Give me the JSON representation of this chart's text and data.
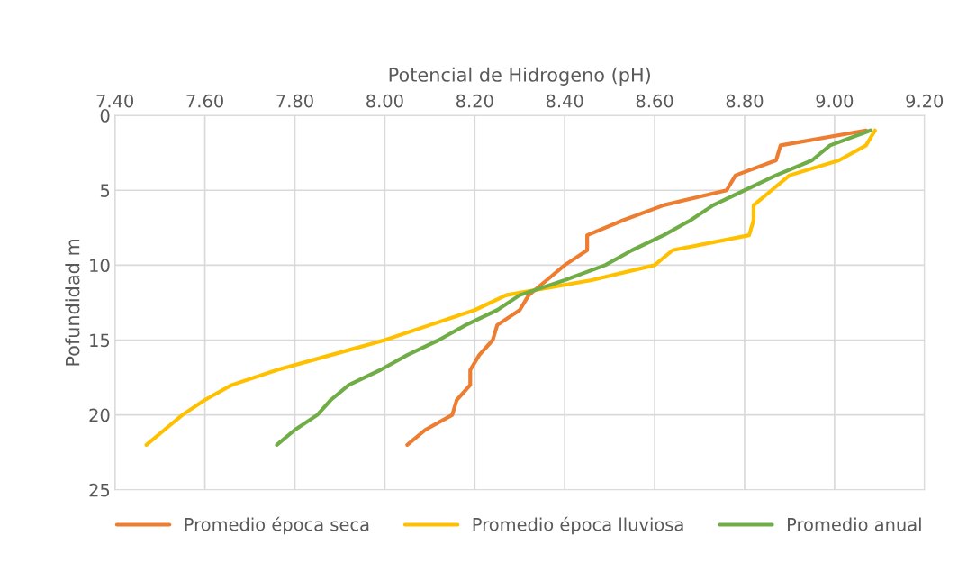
{
  "chart_data": {
    "type": "line",
    "xlabel": "Potencial de Hidrogeno (pH)",
    "ylabel": "Pofundidad m",
    "xlim": [
      7.4,
      9.2
    ],
    "xticks": [
      {
        "value": 7.4,
        "label": "7.40"
      },
      {
        "value": 7.6,
        "label": "7.60"
      },
      {
        "value": 7.8,
        "label": "7.80"
      },
      {
        "value": 8.0,
        "label": "8.00"
      },
      {
        "value": 8.2,
        "label": "8.20"
      },
      {
        "value": 8.4,
        "label": "8.40"
      },
      {
        "value": 8.6,
        "label": "8.60"
      },
      {
        "value": 8.8,
        "label": "8.80"
      },
      {
        "value": 9.0,
        "label": "9.00"
      },
      {
        "value": 9.2,
        "label": "9.20"
      }
    ],
    "ylim": [
      25,
      0
    ],
    "yticks": [
      0,
      5,
      10,
      15,
      20,
      25
    ],
    "grid": true,
    "legend": "bottom",
    "marker": "none",
    "line_style": "solid",
    "series": [
      {
        "name": "Promedio época seca",
        "color": "#ed7d31",
        "x": [
          9.07,
          8.88,
          8.87,
          8.78,
          8.76,
          8.62,
          8.53,
          8.45,
          8.45,
          8.4,
          8.36,
          8.32,
          8.3,
          8.25,
          8.24,
          8.21,
          8.19,
          8.19,
          8.16,
          8.15,
          8.09,
          8.05
        ],
        "values": [
          1,
          2,
          3,
          4,
          5,
          6,
          7,
          8,
          9,
          10,
          11,
          12,
          13,
          14,
          15,
          16,
          17,
          18,
          19,
          20,
          21,
          22
        ]
      },
      {
        "name": "Promedio época lluviosa",
        "color": "#ffc000",
        "x": [
          9.09,
          9.07,
          9.01,
          8.9,
          8.86,
          8.82,
          8.82,
          8.81,
          8.64,
          8.6,
          8.46,
          8.27,
          8.2,
          8.1,
          8.0,
          7.88,
          7.76,
          7.66,
          7.6,
          7.55,
          7.51,
          7.47
        ],
        "values": [
          1,
          2,
          3,
          4,
          5,
          6,
          7,
          8,
          9,
          10,
          11,
          12,
          13,
          14,
          15,
          16,
          17,
          18,
          19,
          20,
          21,
          22
        ]
      },
      {
        "name": "Promedio anual",
        "color": "#70ad47",
        "x": [
          9.08,
          8.99,
          8.95,
          8.87,
          8.8,
          8.73,
          8.68,
          8.62,
          8.55,
          8.49,
          8.4,
          8.3,
          8.25,
          8.18,
          8.12,
          8.05,
          7.99,
          7.92,
          7.88,
          7.85,
          7.8,
          7.76
        ],
        "values": [
          1,
          2,
          3,
          4,
          5,
          6,
          7,
          8,
          9,
          10,
          11,
          12,
          13,
          14,
          15,
          16,
          17,
          18,
          19,
          20,
          21,
          22
        ]
      }
    ]
  }
}
